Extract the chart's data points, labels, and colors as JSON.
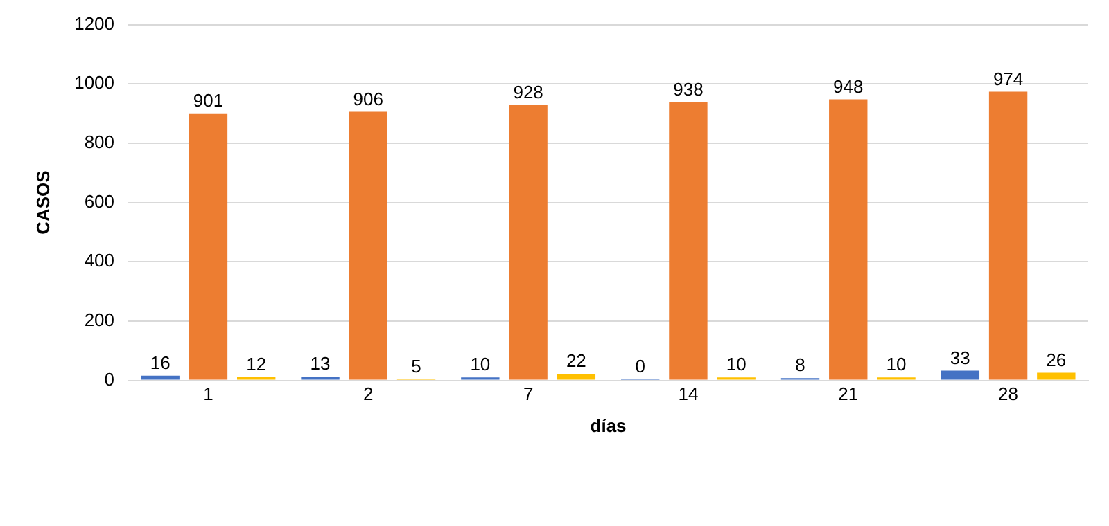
{
  "chart_data": {
    "type": "bar",
    "xlabel": "días",
    "ylabel": "CASOS",
    "categories": [
      "1",
      "2",
      "7",
      "14",
      "21",
      "28"
    ],
    "series": [
      {
        "color": "#4472c4",
        "values": [
          16,
          13,
          10,
          0,
          8,
          33
        ]
      },
      {
        "color": "#ed7d31",
        "values": [
          901,
          906,
          928,
          938,
          948,
          974
        ]
      },
      {
        "color": "#ffc000",
        "values": [
          12,
          5,
          22,
          10,
          10,
          26
        ]
      }
    ],
    "ylim": [
      0,
      1200
    ],
    "yticks": [
      0,
      200,
      400,
      600,
      800,
      1000,
      1200
    ],
    "grid": "y",
    "legend": false,
    "data_labels": true
  }
}
